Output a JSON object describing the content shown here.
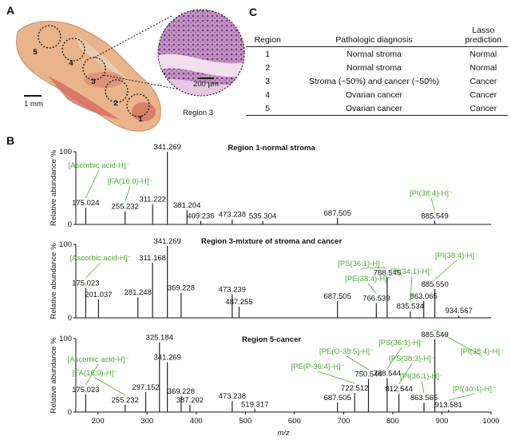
{
  "panel_labels": [
    "A",
    "B",
    "C"
  ],
  "panel_a": {
    "regions": [
      "1",
      "2",
      "3",
      "4",
      "5"
    ],
    "scale_tissue": "1 mm",
    "scale_histology": "200 µm",
    "zoom_label": "Region 3"
  },
  "table": {
    "header": [
      "Region",
      "Pathologic diagnosis",
      "Lasso prediction"
    ],
    "rows": [
      [
        "1",
        "Normal stroma",
        "Normal"
      ],
      [
        "2",
        "Normal stroma",
        "Normal"
      ],
      [
        "3",
        "Stroma (~50%) and cancer (~50%)",
        "Cancer"
      ],
      [
        "4",
        "Ovarian cancer",
        "Cancer"
      ],
      [
        "5",
        "Ovarian cancer",
        "Cancer"
      ]
    ]
  },
  "chart_data": [
    {
      "type": "spectrum",
      "title": "Region 1-normal stroma",
      "ylabel": "Relative abundance %",
      "color": "#222222",
      "annotation_color": "#4aa832",
      "x": [
        175.024,
        255.232,
        311.222,
        341.269,
        381.204,
        409.236,
        473.238,
        535.304,
        687.505,
        885.549
      ],
      "values": [
        23,
        18,
        28,
        100,
        20,
        5,
        7,
        5,
        9,
        5
      ],
      "value_labels": [
        "175.024",
        "255.232",
        "311.222",
        "341.269",
        "381.204",
        "409.236",
        "473.238",
        "535.304",
        "687.505",
        "885.549"
      ],
      "annotations": [
        "[Ascorbic acid-H]⁻",
        "[FA(16:0)-H]⁻",
        null,
        null,
        null,
        null,
        null,
        null,
        null,
        "[PI(38:4)-H]⁻"
      ],
      "xlim": [
        155,
        1000
      ],
      "ylim": [
        0,
        100
      ],
      "yticks": [
        0,
        100
      ]
    },
    {
      "type": "spectrum",
      "title": "Region 3-mixture of stroma and cancer",
      "ylabel": "Relative abundance %",
      "color": "#222222",
      "annotation_color": "#4aa832",
      "x": [
        175.023,
        201.037,
        281.248,
        311.168,
        341.269,
        369.228,
        473.239,
        487.255,
        687.505,
        766.539,
        788.545,
        835.534,
        863.065,
        885.55,
        934.567
      ],
      "values": [
        41,
        25,
        28,
        75,
        98,
        34,
        32,
        15,
        23,
        20,
        55,
        9,
        23,
        39,
        3
      ],
      "value_labels": [
        "175.023",
        "201.037",
        "281.248",
        "311.168",
        "341.269",
        "369.228",
        "473.239",
        "487.255",
        "687.505",
        "766.539",
        "788.545",
        "835.534",
        "863.065",
        "885.550",
        "934.567"
      ],
      "annotations": [
        "[Ascorbic acid-H]⁻",
        null,
        null,
        null,
        null,
        null,
        null,
        null,
        null,
        "[PE(38:4)-H]⁻",
        "[PS(36:1)-H]⁻",
        "[PI(34:1)-H]⁻",
        null,
        "[PI(38:4)-H]⁻",
        null
      ],
      "xlim": [
        155,
        1000
      ],
      "ylim": [
        0,
        100
      ],
      "yticks": [
        0,
        100
      ]
    },
    {
      "type": "spectrum",
      "title": "Region 5-cancer",
      "ylabel": "Relative abundance %",
      "xlabel": "m/z",
      "color": "#222222",
      "annotation_color": "#4aa832",
      "x": [
        175.023,
        255.232,
        297.152,
        325.184,
        341.269,
        369.228,
        387.202,
        473.238,
        519.317,
        687.505,
        722.512,
        750.544,
        788.544,
        812.544,
        863.565,
        885.549,
        913.581
      ],
      "values": [
        24,
        10,
        27,
        95,
        68,
        22,
        10,
        15,
        4,
        13,
        26,
        45,
        46,
        25,
        13,
        99,
        3
      ],
      "value_labels": [
        "175.023",
        "255.232",
        "297.152",
        "325.184",
        "341.269",
        "369.228",
        "387.202",
        "473.238",
        "519.317",
        "687.505",
        "722.512",
        "750.544",
        "788.544",
        "812.544",
        "863.565",
        "885.549",
        "913.581"
      ],
      "annotations": [
        "[Ascorbic acid-H]⁻",
        "[FA(16:0)-H]⁻",
        null,
        null,
        null,
        null,
        null,
        null,
        null,
        null,
        "[PE(P-36:4)-H]⁻",
        "[PE(O-38:5)-H]⁻",
        "[PS(36:1)-H]⁻",
        "[PS(38:3)-H]⁻",
        "[PI(36:1)-H]⁻",
        "[PI(38:4)-H]⁻",
        "[PI(40:4)-H]⁻"
      ],
      "xlim": [
        155,
        1000
      ],
      "ylim": [
        0,
        100
      ],
      "yticks": [
        0,
        100
      ],
      "xticks": [
        200,
        300,
        400,
        500,
        600,
        700,
        800,
        900,
        1000
      ]
    }
  ]
}
